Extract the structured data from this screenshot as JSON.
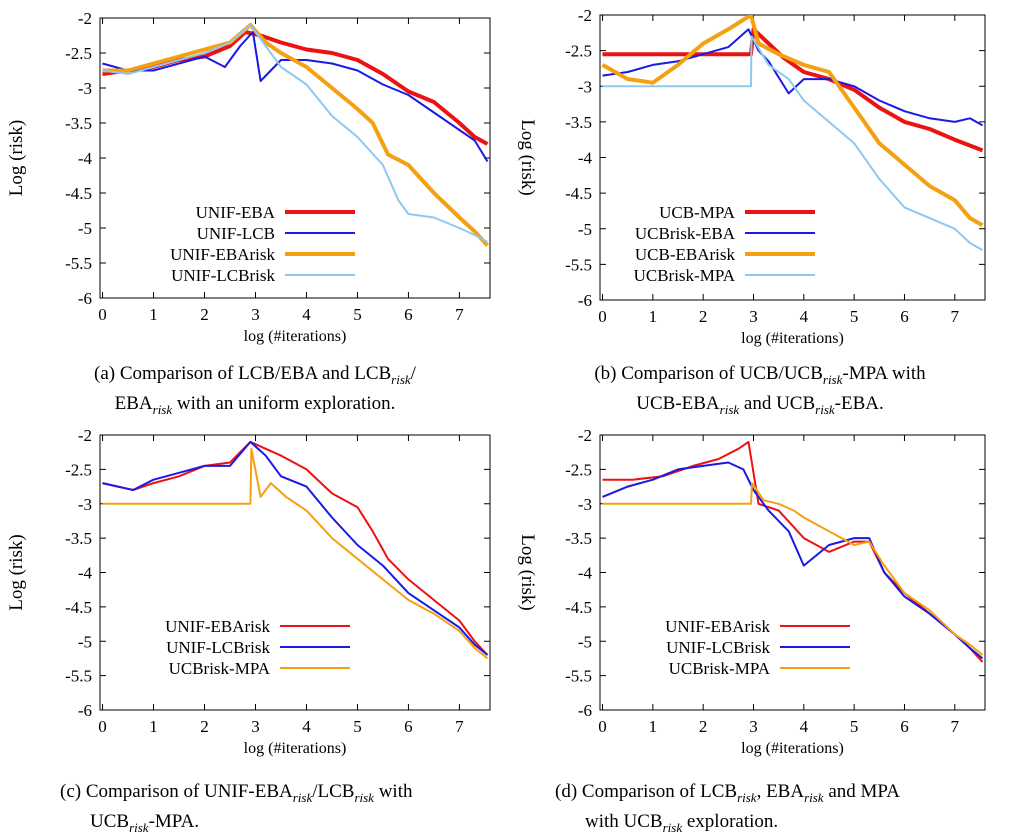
{
  "chart_data": [
    {
      "type": "line",
      "panel_id": "a",
      "xlabel": "log (#iterations)",
      "ylabel": "Log (risk)",
      "xlim": [
        -0.05,
        7.6
      ],
      "ylim": [
        -6,
        -2
      ],
      "xticks": [
        "0",
        "1",
        "2",
        "3",
        "4",
        "5",
        "6",
        "7"
      ],
      "yticks": [
        "-2",
        "-2.5",
        "-3",
        "-3.5",
        "-4",
        "-4.5",
        "-5",
        "-5.5",
        "-6"
      ],
      "legend_position": "bottom-left",
      "series": [
        {
          "name": "UNIF-EBA",
          "color": "#ee1111",
          "width": 4,
          "x": [
            0,
            0.5,
            1,
            1.5,
            2,
            2.5,
            2.8,
            3.1,
            3.5,
            4,
            4.5,
            5,
            5.5,
            6,
            6.5,
            7,
            7.3,
            7.55
          ],
          "y": [
            -2.8,
            -2.75,
            -2.7,
            -2.6,
            -2.55,
            -2.4,
            -2.2,
            -2.25,
            -2.35,
            -2.45,
            -2.5,
            -2.6,
            -2.8,
            -3.05,
            -3.2,
            -3.5,
            -3.7,
            -3.8
          ]
        },
        {
          "name": "UNIF-LCB",
          "color": "#1a1ae6",
          "width": 2,
          "x": [
            0,
            0.5,
            1,
            1.5,
            2,
            2.4,
            2.7,
            2.95,
            3.1,
            3.5,
            4,
            4.5,
            5,
            5.5,
            6,
            6.5,
            7,
            7.3,
            7.55
          ],
          "y": [
            -2.65,
            -2.75,
            -2.75,
            -2.65,
            -2.55,
            -2.7,
            -2.4,
            -2.2,
            -2.9,
            -2.6,
            -2.6,
            -2.65,
            -2.75,
            -2.95,
            -3.1,
            -3.35,
            -3.6,
            -3.75,
            -4.05
          ]
        },
        {
          "name": "UNIF-EBArisk",
          "color": "#f5a010",
          "width": 4,
          "x": [
            0,
            0.5,
            1,
            1.5,
            2,
            2.5,
            2.9,
            3.2,
            3.5,
            4,
            4.5,
            5,
            5.3,
            5.6,
            6,
            6.5,
            7,
            7.3,
            7.55
          ],
          "y": [
            -2.75,
            -2.75,
            -2.65,
            -2.55,
            -2.45,
            -2.35,
            -2.1,
            -2.35,
            -2.5,
            -2.7,
            -3,
            -3.3,
            -3.5,
            -3.95,
            -4.1,
            -4.5,
            -4.85,
            -5.05,
            -5.25
          ]
        },
        {
          "name": "UNIF-LCBrisk",
          "color": "#8ec8f0",
          "width": 2,
          "x": [
            0,
            0.5,
            1,
            1.5,
            2,
            2.5,
            2.9,
            3.2,
            3.5,
            4,
            4.5,
            5,
            5.5,
            5.8,
            6,
            6.5,
            7,
            7.3,
            7.55
          ],
          "y": [
            -2.75,
            -2.8,
            -2.7,
            -2.6,
            -2.5,
            -2.35,
            -2.1,
            -2.4,
            -2.7,
            -2.95,
            -3.4,
            -3.7,
            -4.1,
            -4.6,
            -4.8,
            -4.85,
            -5,
            -5.1,
            -5.2
          ]
        }
      ]
    },
    {
      "type": "line",
      "panel_id": "b",
      "xlabel": "log (#iterations)",
      "ylabel": "Log (risk)",
      "xlim": [
        -0.05,
        7.6
      ],
      "ylim": [
        -6,
        -2
      ],
      "xticks": [
        "0",
        "1",
        "2",
        "3",
        "4",
        "5",
        "6",
        "7"
      ],
      "yticks": [
        "-2",
        "-2.5",
        "-3",
        "-3.5",
        "-4",
        "-4.5",
        "-5",
        "-5.5",
        "-6"
      ],
      "legend_position": "bottom-left",
      "series": [
        {
          "name": "UCB-MPA",
          "color": "#ee1111",
          "width": 4,
          "x": [
            0,
            2.95,
            3.0,
            3.3,
            3.6,
            4,
            4.5,
            5,
            5.5,
            6,
            6.5,
            7,
            7.55
          ],
          "y": [
            -2.55,
            -2.55,
            -2.2,
            -2.4,
            -2.6,
            -2.8,
            -2.9,
            -3.05,
            -3.3,
            -3.5,
            -3.6,
            -3.75,
            -3.9
          ]
        },
        {
          "name": "UCBrisk-EBA",
          "color": "#1a1ae6",
          "width": 2,
          "x": [
            0,
            0.5,
            1,
            1.5,
            2,
            2.5,
            2.9,
            3.1,
            3.3,
            3.7,
            4,
            4.5,
            5,
            5.5,
            6,
            6.5,
            7,
            7.3,
            7.55
          ],
          "y": [
            -2.85,
            -2.8,
            -2.7,
            -2.65,
            -2.55,
            -2.45,
            -2.2,
            -2.5,
            -2.65,
            -3.1,
            -2.9,
            -2.9,
            -3.0,
            -3.2,
            -3.35,
            -3.45,
            -3.5,
            -3.45,
            -3.55
          ]
        },
        {
          "name": "UCB-EBArisk",
          "color": "#f5a010",
          "width": 4,
          "x": [
            0,
            0.5,
            1,
            1.5,
            2,
            2.5,
            2.95,
            3.1,
            3.5,
            4,
            4.5,
            5,
            5.5,
            6,
            6.5,
            7,
            7.3,
            7.55
          ],
          "y": [
            -2.7,
            -2.9,
            -2.95,
            -2.7,
            -2.4,
            -2.2,
            -2.0,
            -2.4,
            -2.55,
            -2.7,
            -2.8,
            -3.3,
            -3.8,
            -4.1,
            -4.4,
            -4.6,
            -4.85,
            -4.95
          ]
        },
        {
          "name": "UCBrisk-MPA",
          "color": "#8ec8f0",
          "width": 2,
          "x": [
            0,
            2.95,
            2.96,
            3.3,
            3.7,
            4,
            4.5,
            5,
            5.5,
            6,
            6.5,
            7,
            7.3,
            7.55
          ],
          "y": [
            -3.0,
            -3.0,
            -2.3,
            -2.7,
            -2.9,
            -3.2,
            -3.5,
            -3.8,
            -4.3,
            -4.7,
            -4.85,
            -5.0,
            -5.2,
            -5.3
          ]
        }
      ]
    },
    {
      "type": "line",
      "panel_id": "c",
      "xlabel": "log (#iterations)",
      "ylabel": "Log (risk)",
      "xlim": [
        -0.05,
        7.6
      ],
      "ylim": [
        -6,
        -2
      ],
      "xticks": [
        "0",
        "1",
        "2",
        "3",
        "4",
        "5",
        "6",
        "7"
      ],
      "yticks": [
        "-2",
        "-2.5",
        "-3",
        "-3.5",
        "-4",
        "-4.5",
        "-5",
        "-5.5",
        "-6"
      ],
      "legend_position": "bottom-left",
      "series": [
        {
          "name": "UNIF-EBArisk",
          "color": "#ee1111",
          "width": 2,
          "x": [
            0,
            0.6,
            1,
            1.5,
            2,
            2.5,
            2.9,
            3.2,
            3.5,
            4,
            4.5,
            5,
            5.3,
            5.6,
            6,
            6.5,
            7,
            7.3,
            7.55
          ],
          "y": [
            -2.7,
            -2.8,
            -2.7,
            -2.6,
            -2.45,
            -2.4,
            -2.1,
            -2.2,
            -2.3,
            -2.5,
            -2.85,
            -3.05,
            -3.4,
            -3.8,
            -4.1,
            -4.4,
            -4.7,
            -5.0,
            -5.2
          ]
        },
        {
          "name": "UNIF-LCBrisk",
          "color": "#1a1ae6",
          "width": 2,
          "x": [
            0,
            0.6,
            1,
            1.5,
            2,
            2.5,
            2.9,
            3.2,
            3.5,
            4,
            4.5,
            5,
            5.5,
            6,
            6.5,
            7,
            7.3,
            7.55
          ],
          "y": [
            -2.7,
            -2.8,
            -2.65,
            -2.55,
            -2.45,
            -2.45,
            -2.1,
            -2.3,
            -2.6,
            -2.75,
            -3.2,
            -3.6,
            -3.9,
            -4.3,
            -4.55,
            -4.8,
            -5.05,
            -5.2
          ]
        },
        {
          "name": "UCBrisk-MPA",
          "color": "#f5a010",
          "width": 2,
          "x": [
            0,
            2.9,
            2.92,
            3.1,
            3.3,
            3.6,
            4,
            4.5,
            5,
            5.5,
            6,
            6.5,
            7,
            7.3,
            7.55
          ],
          "y": [
            -3.0,
            -3.0,
            -2.2,
            -2.9,
            -2.7,
            -2.9,
            -3.1,
            -3.5,
            -3.8,
            -4.1,
            -4.4,
            -4.6,
            -4.85,
            -5.1,
            -5.25
          ]
        }
      ]
    },
    {
      "type": "line",
      "panel_id": "d",
      "xlabel": "log (#iterations)",
      "ylabel": "Log (risk)",
      "xlim": [
        -0.05,
        7.6
      ],
      "ylim": [
        -6,
        -2
      ],
      "xticks": [
        "0",
        "1",
        "2",
        "3",
        "4",
        "5",
        "6",
        "7"
      ],
      "yticks": [
        "-2",
        "-2.5",
        "-3",
        "-3.5",
        "-4",
        "-4.5",
        "-5",
        "-5.5",
        "-6"
      ],
      "legend_position": "bottom-left",
      "series": [
        {
          "name": "UNIF-EBArisk",
          "color": "#ee1111",
          "width": 2,
          "x": [
            0,
            0.6,
            1.2,
            1.8,
            2.3,
            2.7,
            2.9,
            3.1,
            3.5,
            4,
            4.5,
            5,
            5.3,
            5.6,
            6,
            6.5,
            7,
            7.3,
            7.55
          ],
          "y": [
            -2.65,
            -2.65,
            -2.6,
            -2.45,
            -2.35,
            -2.2,
            -2.1,
            -3.0,
            -3.1,
            -3.5,
            -3.7,
            -3.55,
            -3.55,
            -4.0,
            -4.3,
            -4.6,
            -4.9,
            -5.1,
            -5.3
          ]
        },
        {
          "name": "UNIF-LCBrisk",
          "color": "#1a1ae6",
          "width": 2,
          "x": [
            0,
            0.5,
            1,
            1.5,
            2,
            2.5,
            2.8,
            3.0,
            3.3,
            3.7,
            4,
            4.5,
            5,
            5.3,
            5.6,
            6,
            6.5,
            7,
            7.3,
            7.55
          ],
          "y": [
            -2.9,
            -2.75,
            -2.65,
            -2.5,
            -2.45,
            -2.4,
            -2.5,
            -2.8,
            -3.1,
            -3.4,
            -3.9,
            -3.6,
            -3.5,
            -3.5,
            -4.0,
            -4.35,
            -4.6,
            -4.9,
            -5.1,
            -5.25
          ]
        },
        {
          "name": "UCBrisk-MPA",
          "color": "#f5a010",
          "width": 2,
          "x": [
            0,
            2.95,
            2.97,
            3.2,
            3.5,
            3.8,
            4,
            4.5,
            5,
            5.3,
            5.6,
            6,
            6.5,
            7,
            7.3,
            7.55
          ],
          "y": [
            -3.0,
            -3.0,
            -2.7,
            -2.95,
            -3.0,
            -3.1,
            -3.2,
            -3.4,
            -3.6,
            -3.55,
            -3.9,
            -4.3,
            -4.55,
            -4.9,
            -5.05,
            -5.2
          ]
        }
      ]
    }
  ],
  "captions": {
    "a": {
      "line1_pre": "(a) Comparison of LCB/EBA and LCB",
      "line1_sub": "risk",
      "line1_post": "/",
      "line2_pre": "EBA",
      "line2_sub": "risk",
      "line2_post": " with an uniform exploration."
    },
    "b": {
      "line1_pre": "(b) Comparison of UCB/UCB",
      "line1_sub": "risk",
      "line1_post": "-MPA with",
      "line2_pre": "UCB-EBA",
      "line2_sub": "risk",
      "line2_mid": " and UCB",
      "line2_sub2": "risk",
      "line2_post": "-EBA."
    },
    "c": {
      "line1_pre": "(c) Comparison of UNIF-EBA",
      "line1_sub": "risk",
      "line1_mid": "/LCB",
      "line1_sub2": "risk",
      "line1_post": " with",
      "line2_pre": "UCB",
      "line2_sub": "risk",
      "line2_post": "-MPA."
    },
    "d": {
      "line1_pre": "(d) Comparison of LCB",
      "line1_sub": "risk",
      "line1_mid": ", EBA",
      "line1_sub2": "risk",
      "line1_post": " and MPA",
      "line2_pre": "with UCB",
      "line2_sub": "risk",
      "line2_post": " exploration."
    }
  }
}
